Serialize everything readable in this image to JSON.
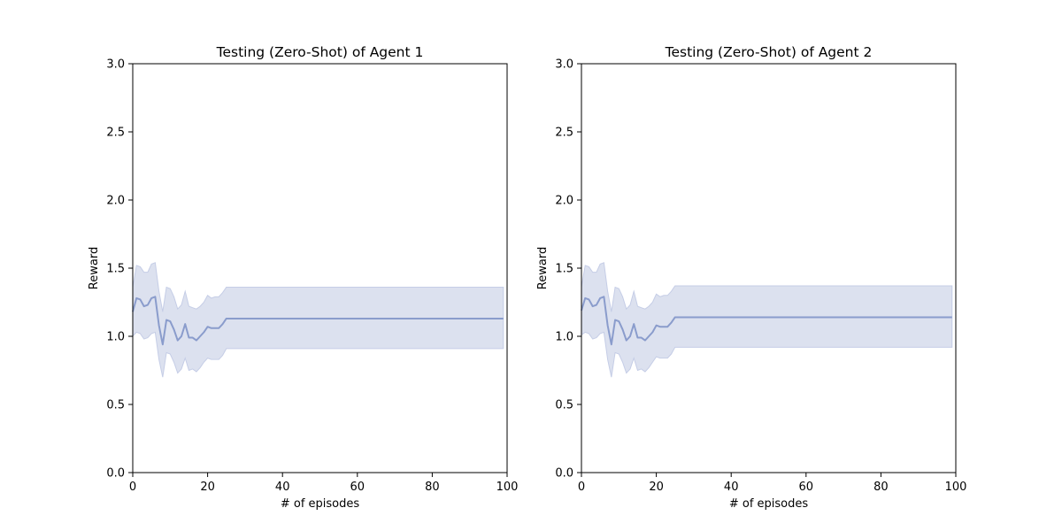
{
  "chart_data": [
    {
      "type": "line",
      "title": "Testing (Zero-Shot) of Agent 1",
      "xlabel": "# of episodes",
      "ylabel": "Reward",
      "xlim": [
        0,
        100
      ],
      "ylim": [
        0,
        3
      ],
      "xticks": [
        0,
        20,
        40,
        60,
        80,
        100
      ],
      "yticks": [
        0.0,
        0.5,
        1.0,
        1.5,
        2.0,
        2.5,
        3.0
      ],
      "xtick_labels": [
        "0",
        "20",
        "40",
        "60",
        "80",
        "100"
      ],
      "ytick_labels": [
        "0.0",
        "0.5",
        "1.0",
        "1.5",
        "2.0",
        "2.5",
        "3.0"
      ],
      "grid": false,
      "colors": {
        "line": "#8a9ccc",
        "band": "#dce1ef",
        "band_edge": "#c5cde6"
      },
      "series": [
        {
          "x": [
            0,
            1,
            2,
            3,
            4,
            5,
            6,
            7,
            8,
            9,
            10,
            11,
            12,
            13,
            14,
            15,
            16,
            17,
            18,
            19,
            20,
            21,
            22,
            23,
            24,
            25,
            30,
            40,
            50,
            60,
            70,
            80,
            90,
            99
          ],
          "values": [
            1.18,
            1.28,
            1.27,
            1.22,
            1.23,
            1.28,
            1.29,
            1.08,
            0.94,
            1.12,
            1.11,
            1.05,
            0.97,
            1.0,
            1.09,
            0.99,
            0.99,
            0.97,
            1.0,
            1.03,
            1.07,
            1.06,
            1.06,
            1.06,
            1.09,
            1.13,
            1.13,
            1.13,
            1.13,
            1.13,
            1.13,
            1.13,
            1.13,
            1.13
          ],
          "upper": [
            1.36,
            1.52,
            1.51,
            1.47,
            1.47,
            1.53,
            1.54,
            1.33,
            1.18,
            1.36,
            1.35,
            1.29,
            1.2,
            1.23,
            1.33,
            1.22,
            1.21,
            1.2,
            1.22,
            1.25,
            1.3,
            1.28,
            1.29,
            1.29,
            1.32,
            1.36,
            1.36,
            1.36,
            1.36,
            1.36,
            1.36,
            1.36,
            1.36,
            1.36
          ],
          "lower": [
            1.0,
            1.03,
            1.02,
            0.98,
            0.99,
            1.02,
            1.03,
            0.83,
            0.7,
            0.88,
            0.87,
            0.81,
            0.73,
            0.76,
            0.84,
            0.75,
            0.76,
            0.74,
            0.77,
            0.81,
            0.84,
            0.83,
            0.83,
            0.83,
            0.86,
            0.91,
            0.91,
            0.91,
            0.91,
            0.91,
            0.91,
            0.91,
            0.91,
            0.91
          ]
        }
      ]
    },
    {
      "type": "line",
      "title": "Testing (Zero-Shot) of Agent 2",
      "xlabel": "# of episodes",
      "ylabel": "Reward",
      "xlim": [
        0,
        100
      ],
      "ylim": [
        0,
        3
      ],
      "xticks": [
        0,
        20,
        40,
        60,
        80,
        100
      ],
      "yticks": [
        0.0,
        0.5,
        1.0,
        1.5,
        2.0,
        2.5,
        3.0
      ],
      "xtick_labels": [
        "0",
        "20",
        "40",
        "60",
        "80",
        "100"
      ],
      "ytick_labels": [
        "0.0",
        "0.5",
        "1.0",
        "1.5",
        "2.0",
        "2.5",
        "3.0"
      ],
      "grid": false,
      "colors": {
        "line": "#8a9ccc",
        "band": "#dce1ef",
        "band_edge": "#c5cde6"
      },
      "series": [
        {
          "x": [
            0,
            1,
            2,
            3,
            4,
            5,
            6,
            7,
            8,
            9,
            10,
            11,
            12,
            13,
            14,
            15,
            16,
            17,
            18,
            19,
            20,
            21,
            22,
            23,
            24,
            25,
            30,
            40,
            50,
            60,
            70,
            80,
            90,
            99
          ],
          "values": [
            1.19,
            1.28,
            1.27,
            1.22,
            1.23,
            1.28,
            1.29,
            1.08,
            0.94,
            1.12,
            1.11,
            1.05,
            0.97,
            1.0,
            1.09,
            0.99,
            0.99,
            0.97,
            1.0,
            1.03,
            1.08,
            1.07,
            1.07,
            1.07,
            1.1,
            1.14,
            1.14,
            1.14,
            1.14,
            1.14,
            1.14,
            1.14,
            1.14,
            1.14
          ],
          "upper": [
            1.36,
            1.52,
            1.51,
            1.47,
            1.47,
            1.53,
            1.54,
            1.33,
            1.18,
            1.36,
            1.35,
            1.29,
            1.2,
            1.23,
            1.33,
            1.22,
            1.21,
            1.2,
            1.22,
            1.25,
            1.31,
            1.29,
            1.3,
            1.3,
            1.33,
            1.37,
            1.37,
            1.37,
            1.37,
            1.37,
            1.37,
            1.37,
            1.37,
            1.37
          ],
          "lower": [
            1.01,
            1.03,
            1.02,
            0.98,
            0.99,
            1.02,
            1.03,
            0.83,
            0.7,
            0.88,
            0.87,
            0.81,
            0.73,
            0.76,
            0.84,
            0.75,
            0.76,
            0.74,
            0.77,
            0.81,
            0.85,
            0.84,
            0.84,
            0.84,
            0.87,
            0.92,
            0.92,
            0.92,
            0.92,
            0.92,
            0.92,
            0.92,
            0.92,
            0.92
          ]
        }
      ]
    }
  ]
}
